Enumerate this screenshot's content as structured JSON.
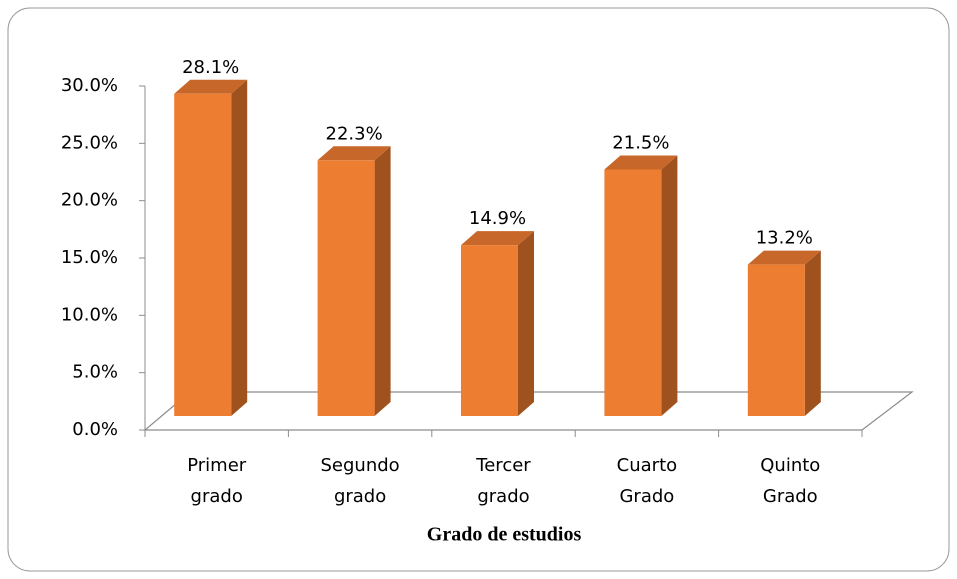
{
  "chart_data": {
    "type": "bar3d",
    "categories": [
      "Primer grado",
      "Segundo grado",
      "Tercer grado",
      "Cuarto Grado",
      "Quinto Grado"
    ],
    "values": [
      28.1,
      22.3,
      14.9,
      21.5,
      13.2
    ],
    "value_labels": [
      "28.1%",
      "22.3%",
      "14.9%",
      "21.5%",
      "13.2%"
    ],
    "color": "#ed7d31",
    "xlabel": "Grado de estudios",
    "ylim": [
      0,
      30
    ],
    "yticks": [
      {
        "value": 0,
        "label": "0.0%"
      },
      {
        "value": 5,
        "label": "5.0%"
      },
      {
        "value": 10,
        "label": "10.0%"
      },
      {
        "value": 15,
        "label": "15.0%"
      },
      {
        "value": 20,
        "label": "20.0%"
      },
      {
        "value": 25,
        "label": "25.0%"
      },
      {
        "value": 30,
        "label": "30.0%"
      }
    ]
  }
}
